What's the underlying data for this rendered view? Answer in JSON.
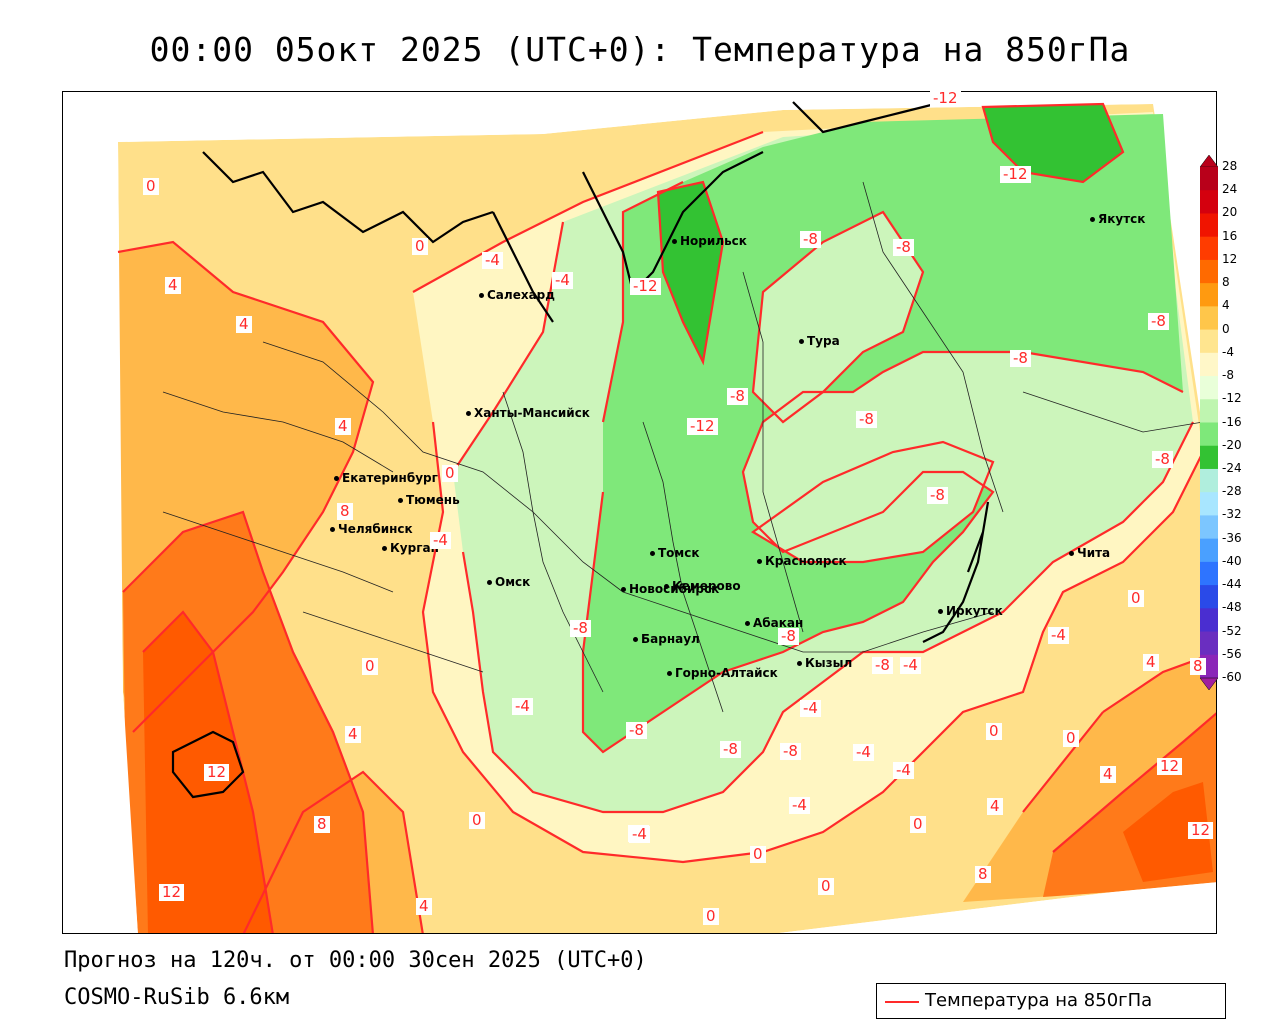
{
  "title": "00:00 05окт 2025 (UTC+0): Температура на 850гПа",
  "forecast_line": "Прогноз на 120ч. от 00:00 30сен 2025 (UTC+0)",
  "model_line": "COSMO-RuSib 6.6км",
  "legend": {
    "label": "Температура на 850гПа",
    "color": "#ff2a2a"
  },
  "colorbar": {
    "ticks": [
      "28",
      "24",
      "20",
      "16",
      "12",
      "8",
      "4",
      "0",
      "-4",
      "-8",
      "-12",
      "-16",
      "-20",
      "-24",
      "-28",
      "-32",
      "-36",
      "-40",
      "-44",
      "-48",
      "-52",
      "-56",
      "-60"
    ],
    "colors": [
      "#b8001a",
      "#d4000e",
      "#f01400",
      "#ff3c00",
      "#ff6a00",
      "#ff9a10",
      "#ffc64a",
      "#ffe58f",
      "#fff7c8",
      "#e9ffd9",
      "#bff5b0",
      "#7ee87a",
      "#33c233",
      "#b0eedd",
      "#a8e6ff",
      "#7cc6ff",
      "#4aa0ff",
      "#2e74ff",
      "#2a4ae8",
      "#4a2ed0",
      "#6a2ec0",
      "#8a26b8",
      "#a01e9e"
    ]
  },
  "cities": [
    {
      "name": "Норильск"
    },
    {
      "name": "Якутск"
    },
    {
      "name": "Салехард"
    },
    {
      "name": "Тура"
    },
    {
      "name": "Ханты-Мансийск"
    },
    {
      "name": "Екатеринбург"
    },
    {
      "name": "Тюмень"
    },
    {
      "name": "Челябинск"
    },
    {
      "name": "Курган"
    },
    {
      "name": "Омск"
    },
    {
      "name": "Томск"
    },
    {
      "name": "Красноярск"
    },
    {
      "name": "Новосибирск"
    },
    {
      "name": "Кемерово"
    },
    {
      "name": "Барнаул"
    },
    {
      "name": "Абакан"
    },
    {
      "name": "Иркутск"
    },
    {
      "name": "Чита"
    },
    {
      "name": "Горно-Алтайск"
    },
    {
      "name": "Кызыл"
    }
  ],
  "contour_labels": [
    {
      "text": "-12"
    },
    {
      "text": "-12"
    },
    {
      "text": "0"
    },
    {
      "text": "-8"
    },
    {
      "text": "-8"
    },
    {
      "text": "-8"
    },
    {
      "text": "-8"
    },
    {
      "text": "0"
    },
    {
      "text": "-4"
    },
    {
      "text": "-4"
    },
    {
      "text": "4"
    },
    {
      "text": "-12"
    },
    {
      "text": "-8"
    },
    {
      "text": "-8"
    },
    {
      "text": "4"
    },
    {
      "text": "-8"
    },
    {
      "text": "-12"
    },
    {
      "text": "-8"
    },
    {
      "text": "-4"
    },
    {
      "text": "0"
    },
    {
      "text": "-8"
    },
    {
      "text": "-4"
    },
    {
      "text": "0"
    },
    {
      "text": "-4"
    },
    {
      "text": "-8"
    },
    {
      "text": "-8"
    },
    {
      "text": "-8"
    },
    {
      "text": "-4"
    },
    {
      "text": "4"
    },
    {
      "text": "8"
    },
    {
      "text": "0"
    },
    {
      "text": "-4"
    },
    {
      "text": "-4"
    },
    {
      "text": "4"
    },
    {
      "text": "12"
    },
    {
      "text": "0"
    },
    {
      "text": "0"
    },
    {
      "text": "-8"
    },
    {
      "text": "-4"
    },
    {
      "text": "-8"
    },
    {
      "text": "-4"
    },
    {
      "text": "-4"
    },
    {
      "text": "12"
    },
    {
      "text": "8"
    },
    {
      "text": "0"
    },
    {
      "text": "-4"
    },
    {
      "text": "0"
    },
    {
      "text": "4"
    },
    {
      "text": "12"
    },
    {
      "text": "12"
    },
    {
      "text": "0"
    },
    {
      "text": "8"
    },
    {
      "text": "4"
    },
    {
      "text": "0"
    },
    {
      "text": "4"
    },
    {
      "text": "0"
    },
    {
      "text": "8"
    },
    {
      "text": "4"
    }
  ]
}
